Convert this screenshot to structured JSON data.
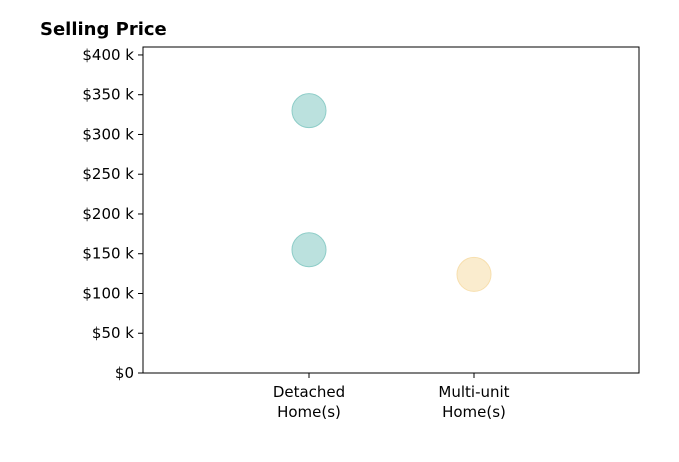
{
  "chart_data": {
    "type": "scatter",
    "title": "Selling Price",
    "xlabel": "",
    "ylabel": "",
    "categories": [
      {
        "label_lines": [
          "Detached",
          "Home(s)"
        ]
      },
      {
        "label_lines": [
          "Multi-unit",
          "Home(s)"
        ]
      }
    ],
    "ylim": [
      0,
      410000
    ],
    "yticks": [
      {
        "value": 0,
        "label": "$0"
      },
      {
        "value": 50000,
        "label": "$50 k"
      },
      {
        "value": 100000,
        "label": "$100 k"
      },
      {
        "value": 150000,
        "label": "$150 k"
      },
      {
        "value": 200000,
        "label": "$200 k"
      },
      {
        "value": 250000,
        "label": "$250 k"
      },
      {
        "value": 300000,
        "label": "$300 k"
      },
      {
        "value": 350000,
        "label": "$350 k"
      },
      {
        "value": 400000,
        "label": "$400 k"
      }
    ],
    "points": [
      {
        "category": 0,
        "value": 330000,
        "color": "#8ecdc8"
      },
      {
        "category": 0,
        "value": 155000,
        "color": "#8ecdc8"
      },
      {
        "category": 1,
        "value": 124000,
        "color": "#f7dfae"
      }
    ],
    "grid": false,
    "legend": "none"
  }
}
